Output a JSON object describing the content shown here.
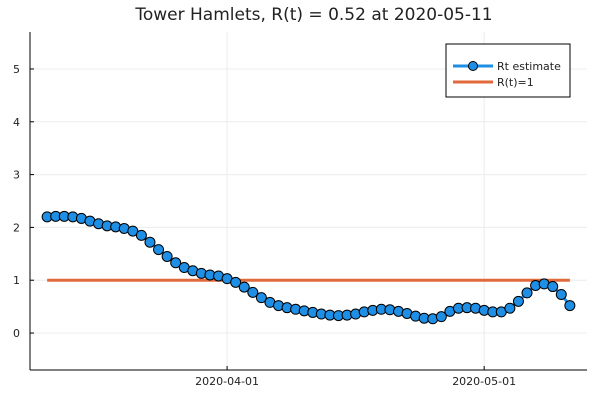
{
  "chart_data": {
    "type": "line",
    "title": "Tower Hamlets, R(t) = 0.52 at 2020-05-11",
    "xlabel": "",
    "ylabel": "",
    "x_range": [
      "2020-03-09",
      "2020-05-13"
    ],
    "ylim": [
      -0.7,
      5.7
    ],
    "y_ticks": [
      0,
      1,
      2,
      3,
      4,
      5
    ],
    "x_ticks": [
      "2020-04-01",
      "2020-05-01"
    ],
    "grid": true,
    "legend_position": "top-right",
    "colors": {
      "estimate": "#1f8fe6",
      "threshold": "#e06a3b",
      "axis": "#000000",
      "grid": "#ececec",
      "marker_edge": "#000000"
    },
    "series": [
      {
        "name": "Rt estimate",
        "marker": "circle",
        "x": [
          "2020-03-11",
          "2020-03-12",
          "2020-03-13",
          "2020-03-14",
          "2020-03-15",
          "2020-03-16",
          "2020-03-17",
          "2020-03-18",
          "2020-03-19",
          "2020-03-20",
          "2020-03-21",
          "2020-03-22",
          "2020-03-23",
          "2020-03-24",
          "2020-03-25",
          "2020-03-26",
          "2020-03-27",
          "2020-03-28",
          "2020-03-29",
          "2020-03-30",
          "2020-03-31",
          "2020-04-01",
          "2020-04-02",
          "2020-04-03",
          "2020-04-04",
          "2020-04-05",
          "2020-04-06",
          "2020-04-07",
          "2020-04-08",
          "2020-04-09",
          "2020-04-10",
          "2020-04-11",
          "2020-04-12",
          "2020-04-13",
          "2020-04-14",
          "2020-04-15",
          "2020-04-16",
          "2020-04-17",
          "2020-04-18",
          "2020-04-19",
          "2020-04-20",
          "2020-04-21",
          "2020-04-22",
          "2020-04-23",
          "2020-04-24",
          "2020-04-25",
          "2020-04-26",
          "2020-04-27",
          "2020-04-28",
          "2020-04-29",
          "2020-04-30",
          "2020-05-01",
          "2020-05-02",
          "2020-05-03",
          "2020-05-04",
          "2020-05-05",
          "2020-05-06",
          "2020-05-07",
          "2020-05-08",
          "2020-05-09",
          "2020-05-10",
          "2020-05-11"
        ],
        "y": [
          2.2,
          2.21,
          2.21,
          2.2,
          2.17,
          2.12,
          2.07,
          2.03,
          2.01,
          1.98,
          1.93,
          1.85,
          1.72,
          1.58,
          1.45,
          1.33,
          1.24,
          1.18,
          1.13,
          1.1,
          1.08,
          1.03,
          0.96,
          0.87,
          0.77,
          0.67,
          0.58,
          0.52,
          0.48,
          0.45,
          0.42,
          0.39,
          0.36,
          0.34,
          0.33,
          0.34,
          0.36,
          0.4,
          0.43,
          0.45,
          0.44,
          0.41,
          0.37,
          0.32,
          0.28,
          0.27,
          0.31,
          0.41,
          0.47,
          0.48,
          0.47,
          0.43,
          0.4,
          0.4,
          0.47,
          0.6,
          0.76,
          0.9,
          0.93,
          0.88,
          0.73,
          0.52
        ]
      },
      {
        "name": "R(t)=1",
        "x": [
          "2020-03-11",
          "2020-05-11"
        ],
        "y": [
          1,
          1
        ]
      }
    ]
  }
}
